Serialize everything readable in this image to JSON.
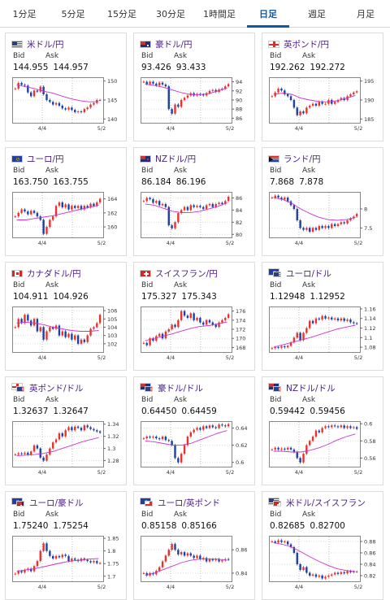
{
  "tabs": [
    "1分足",
    "5分足",
    "15分足",
    "30分足",
    "1時間足",
    "日足",
    "週足",
    "月足"
  ],
  "active_tab": 5,
  "labels": {
    "bid": "Bid",
    "ask": "Ask"
  },
  "colors": {
    "up": "#e8322c",
    "down": "#1f3fa8",
    "ma": "#cc33cc",
    "pair_text": "#4a1d8a",
    "accent": "#0b5aa8"
  },
  "cards": [
    {
      "pair": "米ドル/円",
      "flag": "us",
      "bid": "144.955",
      "ask": "144.957",
      "yticks": [
        "150",
        "145",
        "140"
      ],
      "xticks": [
        "4/4",
        "5/2"
      ],
      "ylim": [
        139,
        151
      ],
      "ma": [
        149,
        148.5,
        148,
        147.3,
        146.8,
        146,
        145.3,
        144.8,
        144.5,
        144.6
      ],
      "closes": [
        148,
        149.5,
        149,
        148.8,
        147,
        146,
        147.5,
        147.2,
        148.5,
        146.5,
        145,
        144.5,
        143.8,
        144.2,
        143.5,
        142.8,
        142.5,
        143,
        142.4,
        141.8,
        142,
        141.8,
        142.6,
        143,
        143.8,
        144.2,
        145,
        145
      ]
    },
    {
      "pair": "豪ドル/円",
      "flag": "au",
      "bid": "93.426",
      "ask": "93.433",
      "yticks": [
        "94",
        "92",
        "90",
        "88",
        "86"
      ],
      "xticks": [
        "4/4",
        "5/2"
      ],
      "ylim": [
        85,
        95
      ],
      "ma": [
        93.5,
        93.2,
        92.8,
        92.2,
        91.6,
        91.2,
        91.2,
        91.4,
        92,
        92.6
      ],
      "closes": [
        94,
        93.5,
        94,
        93.6,
        93.2,
        93.8,
        93.4,
        93,
        88,
        87,
        89,
        88.5,
        90,
        90.5,
        91,
        91.5,
        91,
        91.3,
        91.2,
        91,
        91.5,
        92,
        92.2,
        91.8,
        92.3,
        92.5,
        93,
        93.5
      ]
    },
    {
      "pair": "英ポンド/円",
      "flag": "uk",
      "bid": "192.262",
      "ask": "192.272",
      "yticks": [
        "195",
        "190",
        "185"
      ],
      "xticks": [
        "4/4",
        "5/2"
      ],
      "ylim": [
        184,
        196
      ],
      "ma": [
        191.5,
        191.8,
        191.5,
        190.5,
        190,
        189.6,
        189.5,
        189.8,
        190.5,
        191.2
      ],
      "closes": [
        191,
        192,
        193,
        192.5,
        191.5,
        191,
        190,
        188,
        186,
        187,
        186.5,
        188,
        188.5,
        189,
        188.5,
        189.5,
        189,
        189,
        190,
        189,
        189.5,
        190,
        190.5,
        190,
        191,
        191.5,
        192,
        192.3
      ]
    },
    {
      "pair": "ユーロ/円",
      "flag": "eu",
      "bid": "163.750",
      "ask": "163.755",
      "yticks": [
        "164",
        "162",
        "160"
      ],
      "xticks": [
        "4/4",
        "5/2"
      ],
      "ylim": [
        158.5,
        165
      ],
      "ma": [
        161,
        161,
        161.2,
        161.4,
        161.6,
        161.9,
        162.2,
        162.5,
        162.8,
        163.1
      ],
      "closes": [
        161.5,
        162,
        162.5,
        162.2,
        161.8,
        162.3,
        162,
        161.5,
        161,
        159,
        160,
        161,
        161.5,
        163,
        163.5,
        162.8,
        163.2,
        162.5,
        163,
        162.7,
        163,
        162.5,
        163,
        162.8,
        163.3,
        163,
        163.5,
        164
      ]
    },
    {
      "pair": "NZドル/円",
      "flag": "nz",
      "bid": "86.184",
      "ask": "86.196",
      "yticks": [
        "86",
        "84",
        "82",
        "80"
      ],
      "xticks": [
        "4/4",
        "5/2"
      ],
      "ylim": [
        79.5,
        87
      ],
      "ma": [
        85,
        84.8,
        84.3,
        83.8,
        83.6,
        83.6,
        83.8,
        84.2,
        84.6,
        85.2
      ],
      "closes": [
        85.5,
        86,
        85.8,
        85.2,
        85.5,
        84.8,
        85,
        84.5,
        81.5,
        81,
        82,
        83.5,
        84,
        84.5,
        84,
        84.8,
        84.5,
        84.7,
        84.5,
        84.2,
        84.8,
        85,
        84.5,
        85,
        85.2,
        85,
        85.5,
        86.2
      ]
    },
    {
      "pair": "ランド/円",
      "flag": "za",
      "bid": "7.868",
      "ask": "7.878",
      "yticks": [
        "8",
        "7.5"
      ],
      "xticks": [
        "4/4",
        "5/2"
      ],
      "ylim": [
        7.25,
        8.45
      ],
      "ma": [
        8.3,
        8.25,
        8.15,
        8,
        7.88,
        7.78,
        7.72,
        7.7,
        7.72,
        7.78
      ],
      "closes": [
        8.3,
        8.35,
        8.3,
        8.25,
        8.3,
        8.2,
        8.1,
        8,
        7.7,
        7.5,
        7.45,
        7.5,
        7.4,
        7.5,
        7.45,
        7.55,
        7.5,
        7.55,
        7.5,
        7.6,
        7.55,
        7.6,
        7.65,
        7.62,
        7.7,
        7.75,
        7.8,
        7.87
      ]
    },
    {
      "pair": "カナダドル/円",
      "flag": "ca",
      "bid": "104.911",
      "ask": "104.926",
      "yticks": [
        "106",
        "105",
        "104",
        "103",
        "102"
      ],
      "xticks": [
        "4/4",
        "5/2"
      ],
      "ylim": [
        101,
        106.5
      ],
      "ma": [
        104.5,
        104.6,
        104.5,
        104.3,
        104,
        103.8,
        103.6,
        103.5,
        103.5,
        103.6
      ],
      "closes": [
        104,
        105,
        104.5,
        105.5,
        104.8,
        104.2,
        105,
        103.5,
        104,
        102.5,
        103.5,
        104,
        103.8,
        104.2,
        103,
        103.5,
        102.8,
        103.2,
        102.5,
        103,
        102,
        102.5,
        102.2,
        103,
        103.8,
        104,
        104.5,
        105.5
      ]
    },
    {
      "pair": "スイスフラン/円",
      "flag": "ch",
      "bid": "175.327",
      "ask": "175.343",
      "yticks": [
        "176",
        "174",
        "172",
        "170",
        "168"
      ],
      "xticks": [
        "4/4",
        "5/2"
      ],
      "ylim": [
        167,
        177
      ],
      "ma": [
        169.5,
        170,
        170.5,
        171,
        171.6,
        172.2,
        172.6,
        172.8,
        173.2,
        173.6
      ],
      "closes": [
        169,
        168.5,
        170,
        169.5,
        170.5,
        171,
        170,
        171.5,
        172,
        173,
        172.5,
        174,
        176,
        175,
        174.5,
        175.5,
        174,
        174.5,
        173.5,
        173,
        174,
        173.5,
        173,
        172.5,
        173.5,
        174,
        174.5,
        175.3
      ]
    },
    {
      "pair": "ユーロ/ドル",
      "flag": "eu-us",
      "bid": "1.12948",
      "ask": "1.12952",
      "yticks": [
        "1.16",
        "1.14",
        "1.12",
        "1.1",
        "1.08"
      ],
      "xticks": [
        "4/4",
        "5/2"
      ],
      "ylim": [
        1.07,
        1.165
      ],
      "ma": [
        1.08,
        1.085,
        1.09,
        1.095,
        1.1,
        1.106,
        1.112,
        1.118,
        1.122,
        1.126
      ],
      "closes": [
        1.078,
        1.08,
        1.079,
        1.082,
        1.08,
        1.083,
        1.09,
        1.1,
        1.11,
        1.095,
        1.11,
        1.12,
        1.135,
        1.13,
        1.14,
        1.138,
        1.145,
        1.14,
        1.142,
        1.138,
        1.14,
        1.136,
        1.14,
        1.135,
        1.138,
        1.132,
        1.13,
        1.129
      ]
    },
    {
      "pair": "英ポンド/ドル",
      "flag": "uk-us",
      "bid": "1.32637",
      "ask": "1.32647",
      "yticks": [
        "1.34",
        "1.32",
        "1.3",
        "1.28"
      ],
      "xticks": [
        "4/4",
        "5/2"
      ],
      "ylim": [
        1.27,
        1.345
      ],
      "ma": [
        1.288,
        1.289,
        1.29,
        1.292,
        1.295,
        1.3,
        1.305,
        1.31,
        1.314,
        1.318
      ],
      "closes": [
        1.29,
        1.292,
        1.291,
        1.293,
        1.29,
        1.295,
        1.305,
        1.3,
        1.285,
        1.28,
        1.29,
        1.3,
        1.31,
        1.315,
        1.325,
        1.32,
        1.33,
        1.335,
        1.33,
        1.336,
        1.334,
        1.33,
        1.338,
        1.335,
        1.332,
        1.33,
        1.328,
        1.326
      ]
    },
    {
      "pair": "豪ドル/ドル",
      "flag": "au-us",
      "bid": "0.64450",
      "ask": "0.64459",
      "yticks": [
        "0.64",
        "0.62",
        "0.6"
      ],
      "xticks": [
        "4/4",
        "5/2"
      ],
      "ylim": [
        0.595,
        0.648
      ],
      "ma": [
        0.625,
        0.624,
        0.622,
        0.62,
        0.62,
        0.622,
        0.626,
        0.63,
        0.634,
        0.637
      ],
      "closes": [
        0.628,
        0.63,
        0.629,
        0.63,
        0.628,
        0.627,
        0.63,
        0.626,
        0.625,
        0.62,
        0.605,
        0.6,
        0.61,
        0.62,
        0.63,
        0.635,
        0.638,
        0.64,
        0.638,
        0.642,
        0.64,
        0.643,
        0.641,
        0.64,
        0.644,
        0.643,
        0.642,
        0.6445
      ]
    },
    {
      "pair": "NZドル/ドル",
      "flag": "nz-us",
      "bid": "0.59442",
      "ask": "0.59456",
      "yticks": [
        "0.6",
        "0.58",
        "0.56"
      ],
      "xticks": [
        "4/4",
        "5/2"
      ],
      "ylim": [
        0.55,
        0.603
      ],
      "ma": [
        0.568,
        0.568,
        0.567,
        0.567,
        0.569,
        0.572,
        0.576,
        0.581,
        0.585,
        0.588
      ],
      "closes": [
        0.57,
        0.572,
        0.57,
        0.571,
        0.57,
        0.572,
        0.57,
        0.567,
        0.56,
        0.555,
        0.565,
        0.575,
        0.58,
        0.585,
        0.592,
        0.59,
        0.595,
        0.597,
        0.596,
        0.598,
        0.597,
        0.596,
        0.598,
        0.595,
        0.597,
        0.595,
        0.596,
        0.594
      ]
    },
    {
      "pair": "ユーロ/豪ドル",
      "flag": "eu-au",
      "bid": "1.75240",
      "ask": "1.75254",
      "yticks": [
        "1.85",
        "1.8",
        "1.75",
        "1.7"
      ],
      "xticks": [
        "4/4",
        "5/2"
      ],
      "ylim": [
        1.68,
        1.86
      ],
      "ma": [
        1.72,
        1.725,
        1.73,
        1.738,
        1.746,
        1.754,
        1.76,
        1.764,
        1.768,
        1.77
      ],
      "closes": [
        1.71,
        1.72,
        1.715,
        1.725,
        1.73,
        1.72,
        1.74,
        1.76,
        1.8,
        1.83,
        1.8,
        1.78,
        1.77,
        1.78,
        1.775,
        1.785,
        1.78,
        1.76,
        1.77,
        1.765,
        1.76,
        1.77,
        1.765,
        1.76,
        1.755,
        1.76,
        1.752,
        1.752
      ]
    },
    {
      "pair": "ユーロ/英ポンド",
      "flag": "eu-uk",
      "bid": "0.85158",
      "ask": "0.85166",
      "yticks": [
        "0.86",
        "0.84"
      ],
      "xticks": [
        "4/4",
        "5/2"
      ],
      "ylim": [
        0.833,
        0.872
      ],
      "ma": [
        0.838,
        0.84,
        0.843,
        0.846,
        0.849,
        0.851,
        0.852,
        0.852,
        0.852,
        0.851
      ],
      "closes": [
        0.84,
        0.838,
        0.84,
        0.839,
        0.842,
        0.845,
        0.85,
        0.855,
        0.86,
        0.865,
        0.86,
        0.856,
        0.858,
        0.855,
        0.857,
        0.855,
        0.853,
        0.855,
        0.852,
        0.853,
        0.85,
        0.852,
        0.851,
        0.852,
        0.85,
        0.851,
        0.852,
        0.8516
      ]
    },
    {
      "pair": "米ドル/スイスフラン",
      "flag": "us-ch",
      "bid": "0.82685",
      "ask": "0.82700",
      "yticks": [
        "0.88",
        "0.86",
        "0.84",
        "0.82"
      ],
      "xticks": [
        "4/4",
        "5/2"
      ],
      "ylim": [
        0.81,
        0.89
      ],
      "ma": [
        0.878,
        0.875,
        0.87,
        0.862,
        0.853,
        0.845,
        0.838,
        0.832,
        0.829,
        0.827
      ],
      "closes": [
        0.88,
        0.878,
        0.882,
        0.879,
        0.88,
        0.875,
        0.87,
        0.86,
        0.84,
        0.83,
        0.835,
        0.825,
        0.82,
        0.822,
        0.818,
        0.82,
        0.815,
        0.818,
        0.82,
        0.822,
        0.825,
        0.823,
        0.826,
        0.824,
        0.828,
        0.826,
        0.827,
        0.827
      ]
    }
  ]
}
